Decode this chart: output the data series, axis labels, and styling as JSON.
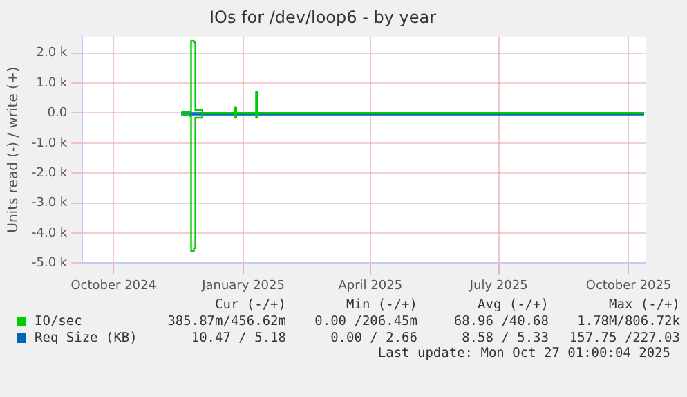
{
  "chart_data": {
    "type": "step",
    "title": "IOs for /dev/loop6 - by year",
    "ylabel": "Units read (-) / write (+)",
    "xlim": [
      "2024-09-24",
      "2025-10-28"
    ],
    "xticks": [
      {
        "value": "2024-10-16",
        "label": "October 2024"
      },
      {
        "value": "2025-01-16",
        "label": "January 2025"
      },
      {
        "value": "2025-04-16",
        "label": "April 2025"
      },
      {
        "value": "2025-07-16",
        "label": "July 2025"
      },
      {
        "value": "2025-10-16",
        "label": "October 2025"
      }
    ],
    "ylim": [
      -5000,
      2550
    ],
    "yticks": [
      {
        "value": -5000,
        "label": "-5.0 k"
      },
      {
        "value": -4000,
        "label": "-4.0 k"
      },
      {
        "value": -3000,
        "label": "-3.0 k"
      },
      {
        "value": -2000,
        "label": "-2.0 k"
      },
      {
        "value": -1000,
        "label": "-1.0 k"
      },
      {
        "value": 0,
        "label": "0.0"
      },
      {
        "value": 1000,
        "label": "1.0 k"
      },
      {
        "value": 2000,
        "label": "2.0 k"
      }
    ],
    "grid": true,
    "legend": "bottom left",
    "series": [
      {
        "name": "IO/sec",
        "color": "#00cc00",
        "x": [
          "2024-12-03",
          "2024-12-09",
          "2024-12-10",
          "2024-12-12",
          "2024-12-13",
          "2024-12-17",
          "2024-12-18",
          "2025-01-10",
          "2025-01-11",
          "2025-01-25",
          "2025-01-26",
          "2025-10-27"
        ],
        "values": [
          50,
          50,
          2400,
          2350,
          100,
          100,
          0,
          200,
          0,
          700,
          0,
          0
        ]
      },
      {
        "color": "#00cc00",
        "x": [
          "2024-12-03",
          "2024-12-09",
          "2024-12-10",
          "2024-12-12",
          "2024-12-13",
          "2024-12-17",
          "2024-12-18",
          "2025-01-10",
          "2025-01-11",
          "2025-01-25",
          "2025-01-26",
          "2025-10-27"
        ],
        "values": [
          -50,
          -100,
          -4600,
          -4500,
          -150,
          -150,
          0,
          -150,
          0,
          -150,
          0,
          0
        ]
      },
      {
        "name": "Req Size (KB)",
        "color": "#0066b3",
        "x": [
          "2024-12-03",
          "2024-12-20",
          "2025-02-01",
          "2025-04-01",
          "2025-07-01",
          "2025-10-01",
          "2025-10-27"
        ],
        "values": [
          0,
          0,
          0,
          0,
          0,
          0,
          0
        ]
      },
      {
        "color": "#0066b3",
        "x": [
          "2024-12-03",
          "2024-12-20",
          "2025-02-01",
          "2025-04-01",
          "2025-07-01",
          "2025-10-01",
          "2025-10-27"
        ],
        "values": [
          -50,
          -50,
          -50,
          -50,
          -50,
          -50,
          -50
        ]
      }
    ],
    "annotations": [
      "Cur (-/+)",
      "Min (-/+)",
      "Avg (-/+)",
      "Max (-/+)",
      "385.87m/456.62m",
      "0.00 /206.45m",
      "68.96 /40.68",
      "1.78M/806.72k",
      "10.47 / 5.18",
      "0.00 / 2.66",
      "8.58 / 5.33",
      "157.75 /227.03",
      "Last update: Mon Oct 27 01:00:04 2025"
    ]
  }
}
